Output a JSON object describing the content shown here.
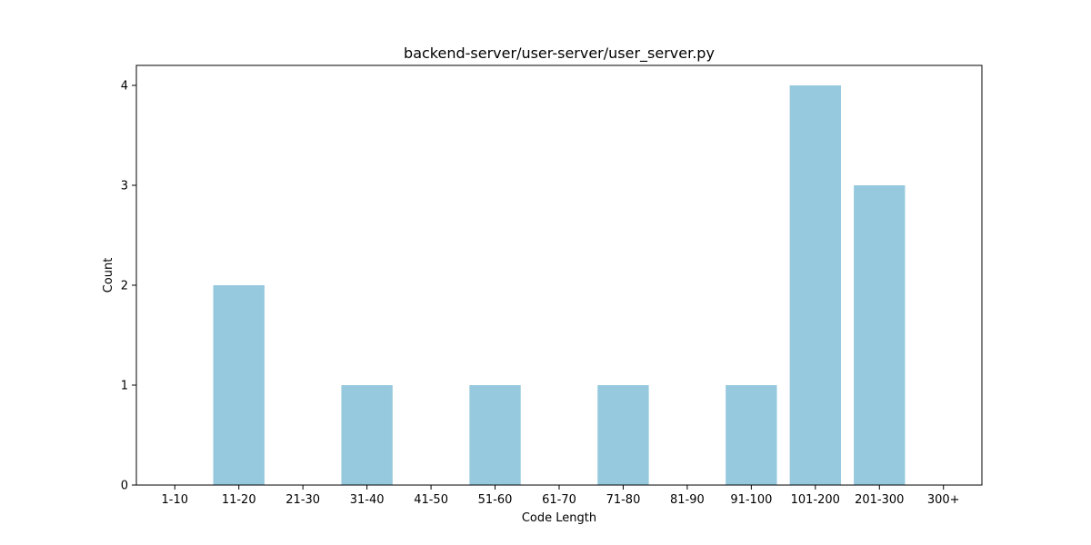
{
  "chart_data": {
    "type": "bar",
    "title": "backend-server/user-server/user_server.py",
    "xlabel": "Code Length",
    "ylabel": "Count",
    "categories": [
      "1-10",
      "11-20",
      "21-30",
      "31-40",
      "41-50",
      "51-60",
      "61-70",
      "71-80",
      "81-90",
      "91-100",
      "101-200",
      "201-300",
      "300+"
    ],
    "values": [
      0,
      2,
      0,
      1,
      0,
      1,
      0,
      1,
      0,
      1,
      4,
      3,
      0
    ],
    "ylim": [
      0,
      4.2
    ],
    "yticks": [
      0,
      1,
      2,
      3,
      4
    ],
    "grid": false,
    "legend": "none",
    "bar_color": "#96c9de",
    "axis_color": "#000000"
  }
}
